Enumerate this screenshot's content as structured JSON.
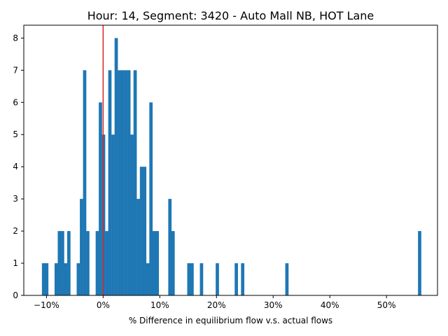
{
  "chart_data": {
    "type": "histogram",
    "title": "Hour: 14, Segment: 3420 - Auto Mall NB, HOT Lane",
    "xlabel": "% Difference in equilibrium flow v.s. actual flows",
    "ylabel": "",
    "xlim": [
      -0.14,
      0.59
    ],
    "ylim": [
      0,
      8.4
    ],
    "x_ticks": [
      {
        "value": -0.1,
        "label": "−10%"
      },
      {
        "value": 0.0,
        "label": "0%"
      },
      {
        "value": 0.1,
        "label": "10%"
      },
      {
        "value": 0.2,
        "label": "20%"
      },
      {
        "value": 0.3,
        "label": "30%"
      },
      {
        "value": 0.4,
        "label": "40%"
      },
      {
        "value": 0.5,
        "label": "50%"
      }
    ],
    "y_ticks": [
      {
        "value": 0,
        "label": "0"
      },
      {
        "value": 1,
        "label": "1"
      },
      {
        "value": 2,
        "label": "2"
      },
      {
        "value": 3,
        "label": "3"
      },
      {
        "value": 4,
        "label": "4"
      },
      {
        "value": 5,
        "label": "5"
      },
      {
        "value": 6,
        "label": "6"
      },
      {
        "value": 7,
        "label": "7"
      },
      {
        "value": 8,
        "label": "8"
      }
    ],
    "bin_width": 0.00558,
    "bins": [
      {
        "x": -0.108,
        "count": 1
      },
      {
        "x": -0.1024,
        "count": 1
      },
      {
        "x": -0.0857,
        "count": 1
      },
      {
        "x": -0.0801,
        "count": 2
      },
      {
        "x": -0.0745,
        "count": 2
      },
      {
        "x": -0.069,
        "count": 1
      },
      {
        "x": -0.0634,
        "count": 2
      },
      {
        "x": -0.0467,
        "count": 1
      },
      {
        "x": -0.0411,
        "count": 3
      },
      {
        "x": -0.0355,
        "count": 7
      },
      {
        "x": -0.03,
        "count": 2
      },
      {
        "x": -0.0132,
        "count": 2
      },
      {
        "x": -0.0077,
        "count": 6
      },
      {
        "x": -0.0021,
        "count": 5
      },
      {
        "x": 0.0035,
        "count": 2
      },
      {
        "x": 0.009,
        "count": 7
      },
      {
        "x": 0.0146,
        "count": 5
      },
      {
        "x": 0.0202,
        "count": 8
      },
      {
        "x": 0.0258,
        "count": 7
      },
      {
        "x": 0.0313,
        "count": 7
      },
      {
        "x": 0.0369,
        "count": 7
      },
      {
        "x": 0.0425,
        "count": 7
      },
      {
        "x": 0.0481,
        "count": 5
      },
      {
        "x": 0.0536,
        "count": 7
      },
      {
        "x": 0.0592,
        "count": 3
      },
      {
        "x": 0.0648,
        "count": 4
      },
      {
        "x": 0.0704,
        "count": 4
      },
      {
        "x": 0.0759,
        "count": 1
      },
      {
        "x": 0.0815,
        "count": 6
      },
      {
        "x": 0.0871,
        "count": 2
      },
      {
        "x": 0.0926,
        "count": 2
      },
      {
        "x": 0.1149,
        "count": 3
      },
      {
        "x": 0.1205,
        "count": 2
      },
      {
        "x": 0.1484,
        "count": 1
      },
      {
        "x": 0.154,
        "count": 1
      },
      {
        "x": 0.1707,
        "count": 1
      },
      {
        "x": 0.1986,
        "count": 1
      },
      {
        "x": 0.2321,
        "count": 1
      },
      {
        "x": 0.2433,
        "count": 1
      },
      {
        "x": 0.3214,
        "count": 1
      },
      {
        "x": 0.5556,
        "count": 2
      }
    ],
    "reference_line": {
      "x": 0.0,
      "color": "#d62728"
    },
    "bar_color": "#1f77b4",
    "grid": false,
    "legend": "none"
  }
}
